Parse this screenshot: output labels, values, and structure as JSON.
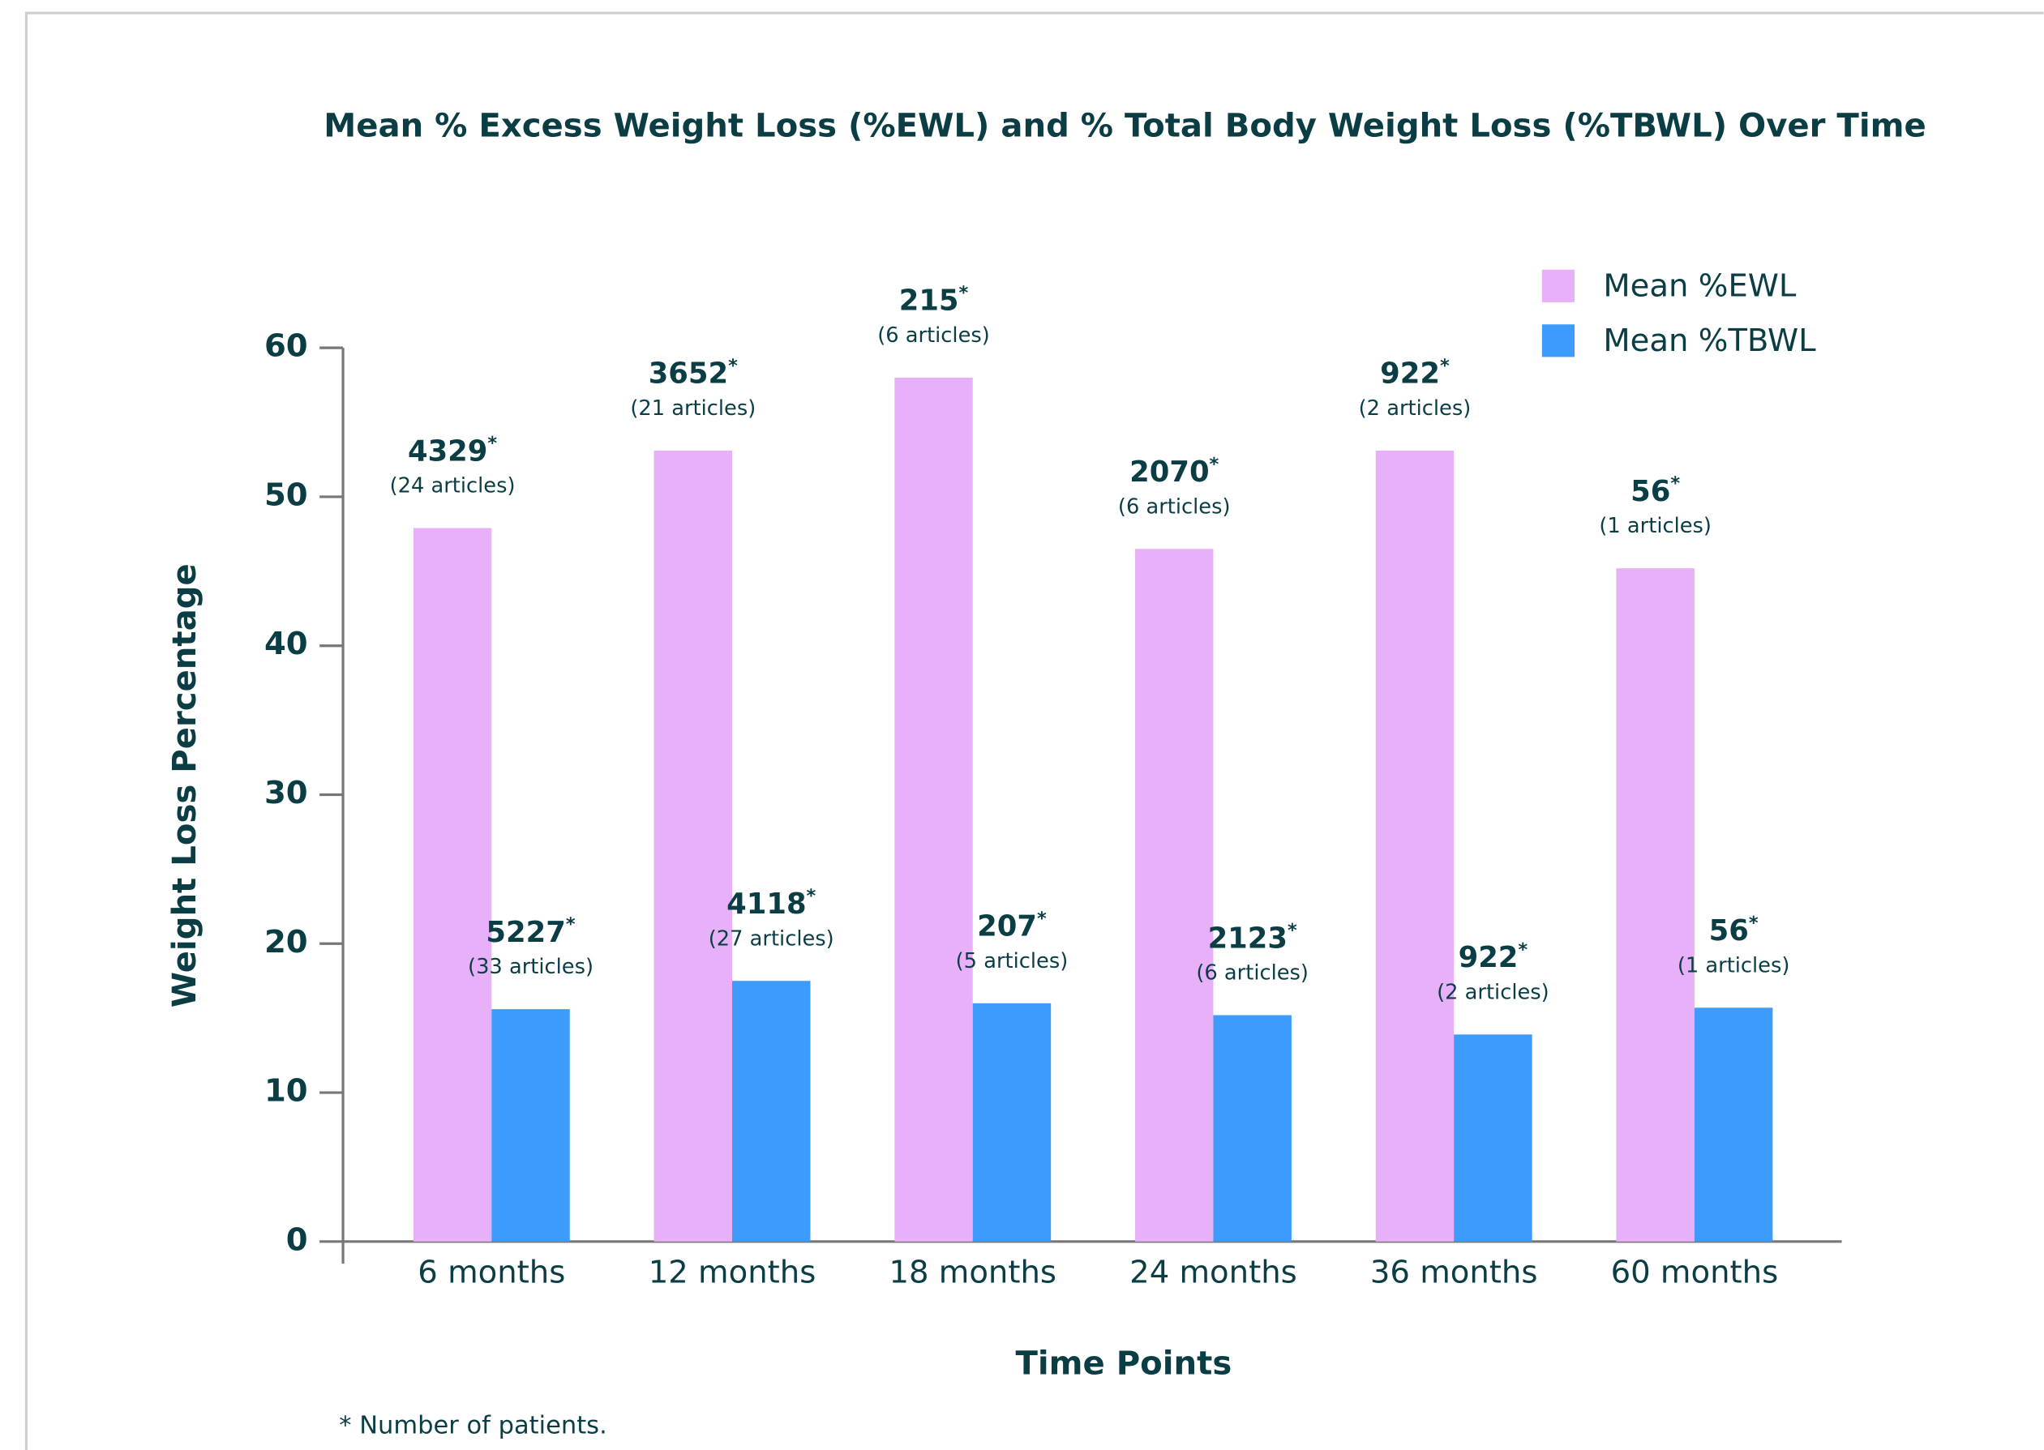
{
  "chart_data": {
    "type": "bar",
    "title": "Mean % Excess Weight Loss (%EWL) and % Total Body Weight Loss (%TBWL) Over Time",
    "x_label": "Time Points",
    "y_label": "Weight Loss Percentage",
    "categories": [
      "6 months",
      "12 months",
      "18 months",
      "24 months",
      "36 months",
      "60 months"
    ],
    "series": [
      {
        "name": "Mean %EWL",
        "color": "#e8b0f8",
        "values": [
          47.9,
          53.1,
          58.0,
          46.5,
          53.1,
          45.2
        ],
        "patients": [
          "4329",
          "3652",
          "215",
          "2070",
          "922",
          "56"
        ],
        "articles": [
          "(24 articles)",
          "(21 articles)",
          "(6 articles)",
          "(6 articles)",
          "(2 articles)",
          "(1 articles)"
        ]
      },
      {
        "name": "Mean %TBWL",
        "color": "#3d9bfb",
        "values": [
          15.6,
          17.5,
          16.0,
          15.2,
          13.9,
          15.7
        ],
        "patients": [
          "5227",
          "4118",
          "207",
          "2123",
          "922",
          "56"
        ],
        "articles": [
          "(33 articles)",
          "(27 articles)",
          "(5 articles)",
          "(6 articles)",
          "(2 articles)",
          "(1 articles)"
        ]
      }
    ],
    "patient_marker": "*",
    "footnote": "* Number of patients.",
    "ylim": [
      0,
      60
    ],
    "yticks": [
      0,
      10,
      20,
      30,
      40,
      50,
      60
    ],
    "legend": "upper right",
    "grid": false
  }
}
